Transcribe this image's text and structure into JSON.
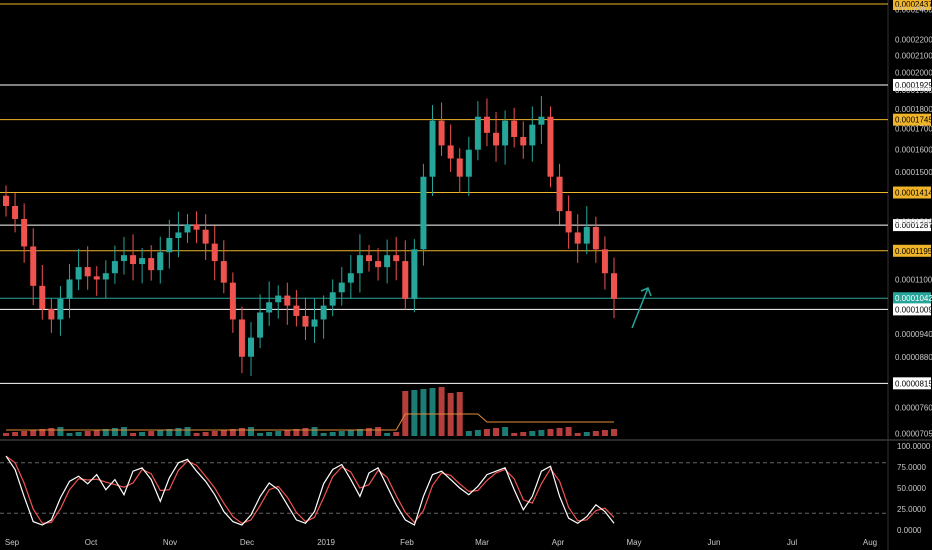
{
  "colors": {
    "background": "#000000",
    "up": "#26a69a",
    "down": "#ef5350",
    "orange_level": "#f0b428",
    "white_level": "#ffffff",
    "current_price": "#26a69a",
    "stoch_k": "#ffffff",
    "stoch_d": "#ef5350",
    "volume_ma": "#e08b3a",
    "arrow": "#26a69a"
  },
  "chart_data": {
    "type": "candlestick",
    "price_axis": {
      "tick_labels": [
        "0.0002400",
        "0.0002200",
        "0.0002100",
        "0.0002000",
        "0.0001900",
        "0.0001800",
        "0.0001700",
        "0.0001600",
        "0.0001500",
        "0.0001300",
        "0.0001100",
        "0.0000940",
        "0.0000880",
        "0.0000760",
        "0.0000705"
      ],
      "scale": "log",
      "range": [
        7e-05,
        0.0002437
      ]
    },
    "time_axis": {
      "tick_labels": [
        "Sep",
        "Oct",
        "Nov",
        "Dec",
        "2019",
        "Feb",
        "Mar",
        "Apr",
        "May",
        "Jun",
        "Jul",
        "Aug"
      ]
    },
    "horizontal_levels": [
      {
        "label": "0.0002437",
        "value": 0.0002437,
        "style": "orange"
      },
      {
        "label": "0.0001929",
        "value": 0.0001929,
        "style": "white"
      },
      {
        "label": "0.0001745",
        "value": 0.0001745,
        "style": "orange"
      },
      {
        "label": "0.0001414",
        "value": 0.0001414,
        "style": "orange"
      },
      {
        "label": "0.0001287",
        "value": 0.0001287,
        "style": "white"
      },
      {
        "label": "0.0001195",
        "value": 0.0001195,
        "style": "orange"
      },
      {
        "label": "0.0001042",
        "value": 0.0001042,
        "style": "current"
      },
      {
        "label": "0.0001009",
        "value": 0.0001009,
        "style": "white"
      },
      {
        "label": "0.0000815",
        "value": 8.15e-05,
        "style": "white"
      }
    ],
    "price_series_approx": {
      "x_week": [
        0,
        2,
        4,
        6,
        8,
        10,
        12,
        14,
        16,
        18,
        20,
        22,
        24,
        26,
        28,
        30,
        32,
        34,
        36,
        38,
        40,
        42,
        44,
        46,
        48,
        50,
        52,
        54,
        56,
        58,
        60,
        62,
        64,
        66,
        68,
        70,
        72,
        74,
        76,
        78,
        80,
        82,
        84,
        86,
        88,
        90,
        92,
        94,
        96,
        98,
        100,
        102,
        104,
        106,
        108,
        110,
        112,
        114,
        116,
        118,
        120,
        122,
        124,
        126,
        128,
        130,
        132,
        134
      ],
      "close": [
        0.000136,
        0.000131,
        0.000121,
        0.000108,
        0.000101,
        9.8e-05,
        0.000104,
        0.00011,
        0.000114,
        0.000111,
        0.00011,
        0.000112,
        0.000116,
        0.000118,
        0.000115,
        0.000117,
        0.000113,
        0.000119,
        0.000124,
        0.000126,
        0.000129,
        0.000127,
        0.000122,
        0.000116,
        0.000109,
        9.8e-05,
        8.8e-05,
        9.3e-05,
        0.0001,
        0.000103,
        0.000105,
        0.000102,
        9.9e-05,
        9.6e-05,
        9.8e-05,
        0.000102,
        0.000106,
        0.000109,
        0.000112,
        0.000118,
        0.000116,
        0.000114,
        0.000118,
        0.000116,
        0.000104,
        0.00012,
        0.000148,
        0.000174,
        0.000162,
        0.000156,
        0.000148,
        0.00016,
        0.000176,
        0.000168,
        0.000162,
        0.000174,
        0.000166,
        0.000162,
        0.000172,
        0.000176,
        0.000148,
        0.000134,
        0.000126,
        0.000122,
        0.000128,
        0.00012,
        0.000112,
        0.000104
      ]
    },
    "volume_ma_present": true,
    "stochastic": {
      "axis_labels": [
        "100.0000",
        "75.0000",
        "50.0000",
        "25.0000",
        "0.0000"
      ],
      "overbought": 80,
      "oversold": 20,
      "k_approx": [
        88,
        72,
        40,
        10,
        6,
        12,
        38,
        58,
        64,
        55,
        66,
        48,
        60,
        42,
        70,
        74,
        60,
        34,
        62,
        80,
        84,
        70,
        58,
        42,
        22,
        10,
        6,
        18,
        40,
        56,
        48,
        30,
        12,
        8,
        22,
        55,
        72,
        78,
        60,
        40,
        68,
        74,
        52,
        30,
        12,
        6,
        40,
        66,
        70,
        60,
        50,
        42,
        52,
        66,
        70,
        74,
        48,
        24,
        40,
        70,
        76,
        40,
        14,
        8,
        16,
        30,
        22,
        8
      ]
    },
    "annotations": [
      {
        "type": "arrow",
        "direction": "up-right"
      }
    ]
  }
}
